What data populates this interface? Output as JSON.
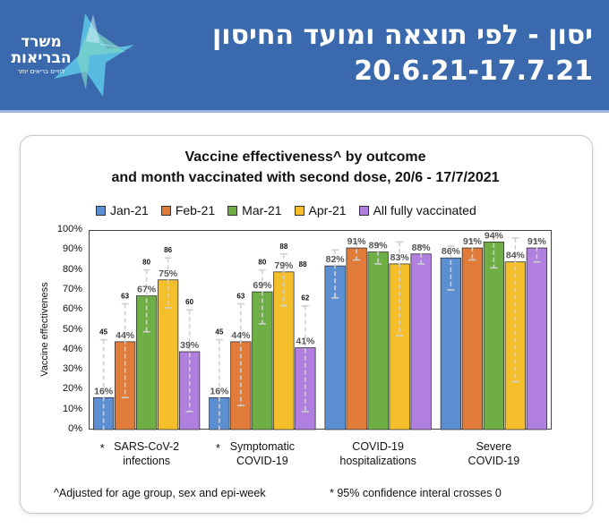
{
  "header": {
    "title_line1": "יסון - לפי תוצאה ומועד החיסון",
    "title_line2": "20.6.21-17.7.21",
    "logo_line1": "משרד",
    "logo_line2": "הבריאות",
    "logo_tagline": "לחיים בריאים יותר"
  },
  "colors": {
    "header_bg": "#3a6aad",
    "series": [
      "#5b8fd1",
      "#e07b39",
      "#6fad45",
      "#f5bf2c",
      "#b07fdf"
    ]
  },
  "chart_data": {
    "type": "bar",
    "title_line1": "Vaccine effectiveness^ by outcome",
    "title_line2": "and month vaccinated with second dose, 20/6 - 17/7/2021",
    "ylabel": "Vaccine effectiveness",
    "ylim": [
      0,
      100
    ],
    "y_ticks": [
      "0%",
      "10%",
      "20%",
      "30%",
      "40%",
      "50%",
      "60%",
      "70%",
      "80%",
      "90%",
      "100%"
    ],
    "categories": [
      {
        "line1": "SARS-CoV-2",
        "line2": "infections",
        "star": "*"
      },
      {
        "line1": "Symptomatic",
        "line2": "COVID-19",
        "star": "*"
      },
      {
        "line1": "COVID-19",
        "line2": "hospitalizations",
        "star": ""
      },
      {
        "line1": "Severe",
        "line2": "COVID-19",
        "star": ""
      }
    ],
    "series": [
      {
        "name": "Jan-21",
        "values": [
          16,
          16,
          82,
          86
        ],
        "labels": [
          "16%",
          "16%",
          "82%",
          "86%"
        ],
        "ci_lower": [
          null,
          null,
          66,
          70
        ],
        "ci_upper": [
          45,
          45,
          90,
          92
        ],
        "ci_labels": [
          "45",
          "45",
          "",
          ""
        ]
      },
      {
        "name": "Feb-21",
        "values": [
          44,
          44,
          91,
          91
        ],
        "labels": [
          "44%",
          "44%",
          "91%",
          "91%"
        ],
        "ci_lower": [
          16,
          12,
          85,
          85
        ],
        "ci_upper": [
          63,
          63,
          94,
          95
        ],
        "ci_labels": [
          "63",
          "63",
          "",
          ""
        ]
      },
      {
        "name": "Mar-21",
        "values": [
          67,
          69,
          89,
          94
        ],
        "labels": [
          "67%",
          "69%",
          "89%",
          "94%"
        ],
        "ci_lower": [
          49,
          53,
          83,
          81
        ],
        "ci_upper": [
          80,
          80,
          93,
          97
        ],
        "ci_labels": [
          "80",
          "80",
          "",
          ""
        ]
      },
      {
        "name": "Apr-21",
        "values": [
          75,
          79,
          83,
          84
        ],
        "labels": [
          "75%",
          "79%",
          "83%",
          "84%"
        ],
        "ci_lower": [
          61,
          62,
          47,
          24
        ],
        "ci_upper": [
          86,
          88,
          94,
          96
        ],
        "ci_labels": [
          "86",
          "88",
          "",
          ""
        ]
      },
      {
        "name": "All fully vaccinated",
        "values": [
          39,
          41,
          88,
          91
        ],
        "labels": [
          "39%",
          "41%",
          "88%",
          "91%"
        ],
        "ci_lower": [
          9,
          9,
          83,
          84
        ],
        "ci_upper": [
          60,
          62,
          92,
          95
        ],
        "ci_labels": [
          "60",
          "62",
          "",
          ""
        ]
      }
    ],
    "extra_labels": [
      {
        "series": 3,
        "category": 1,
        "text": "88"
      }
    ],
    "legend_position": "top",
    "grid": false
  },
  "footnotes": {
    "left": "^Adjusted for age group, sex and epi-week",
    "right": "* 95% confidence interal  crosses 0"
  }
}
